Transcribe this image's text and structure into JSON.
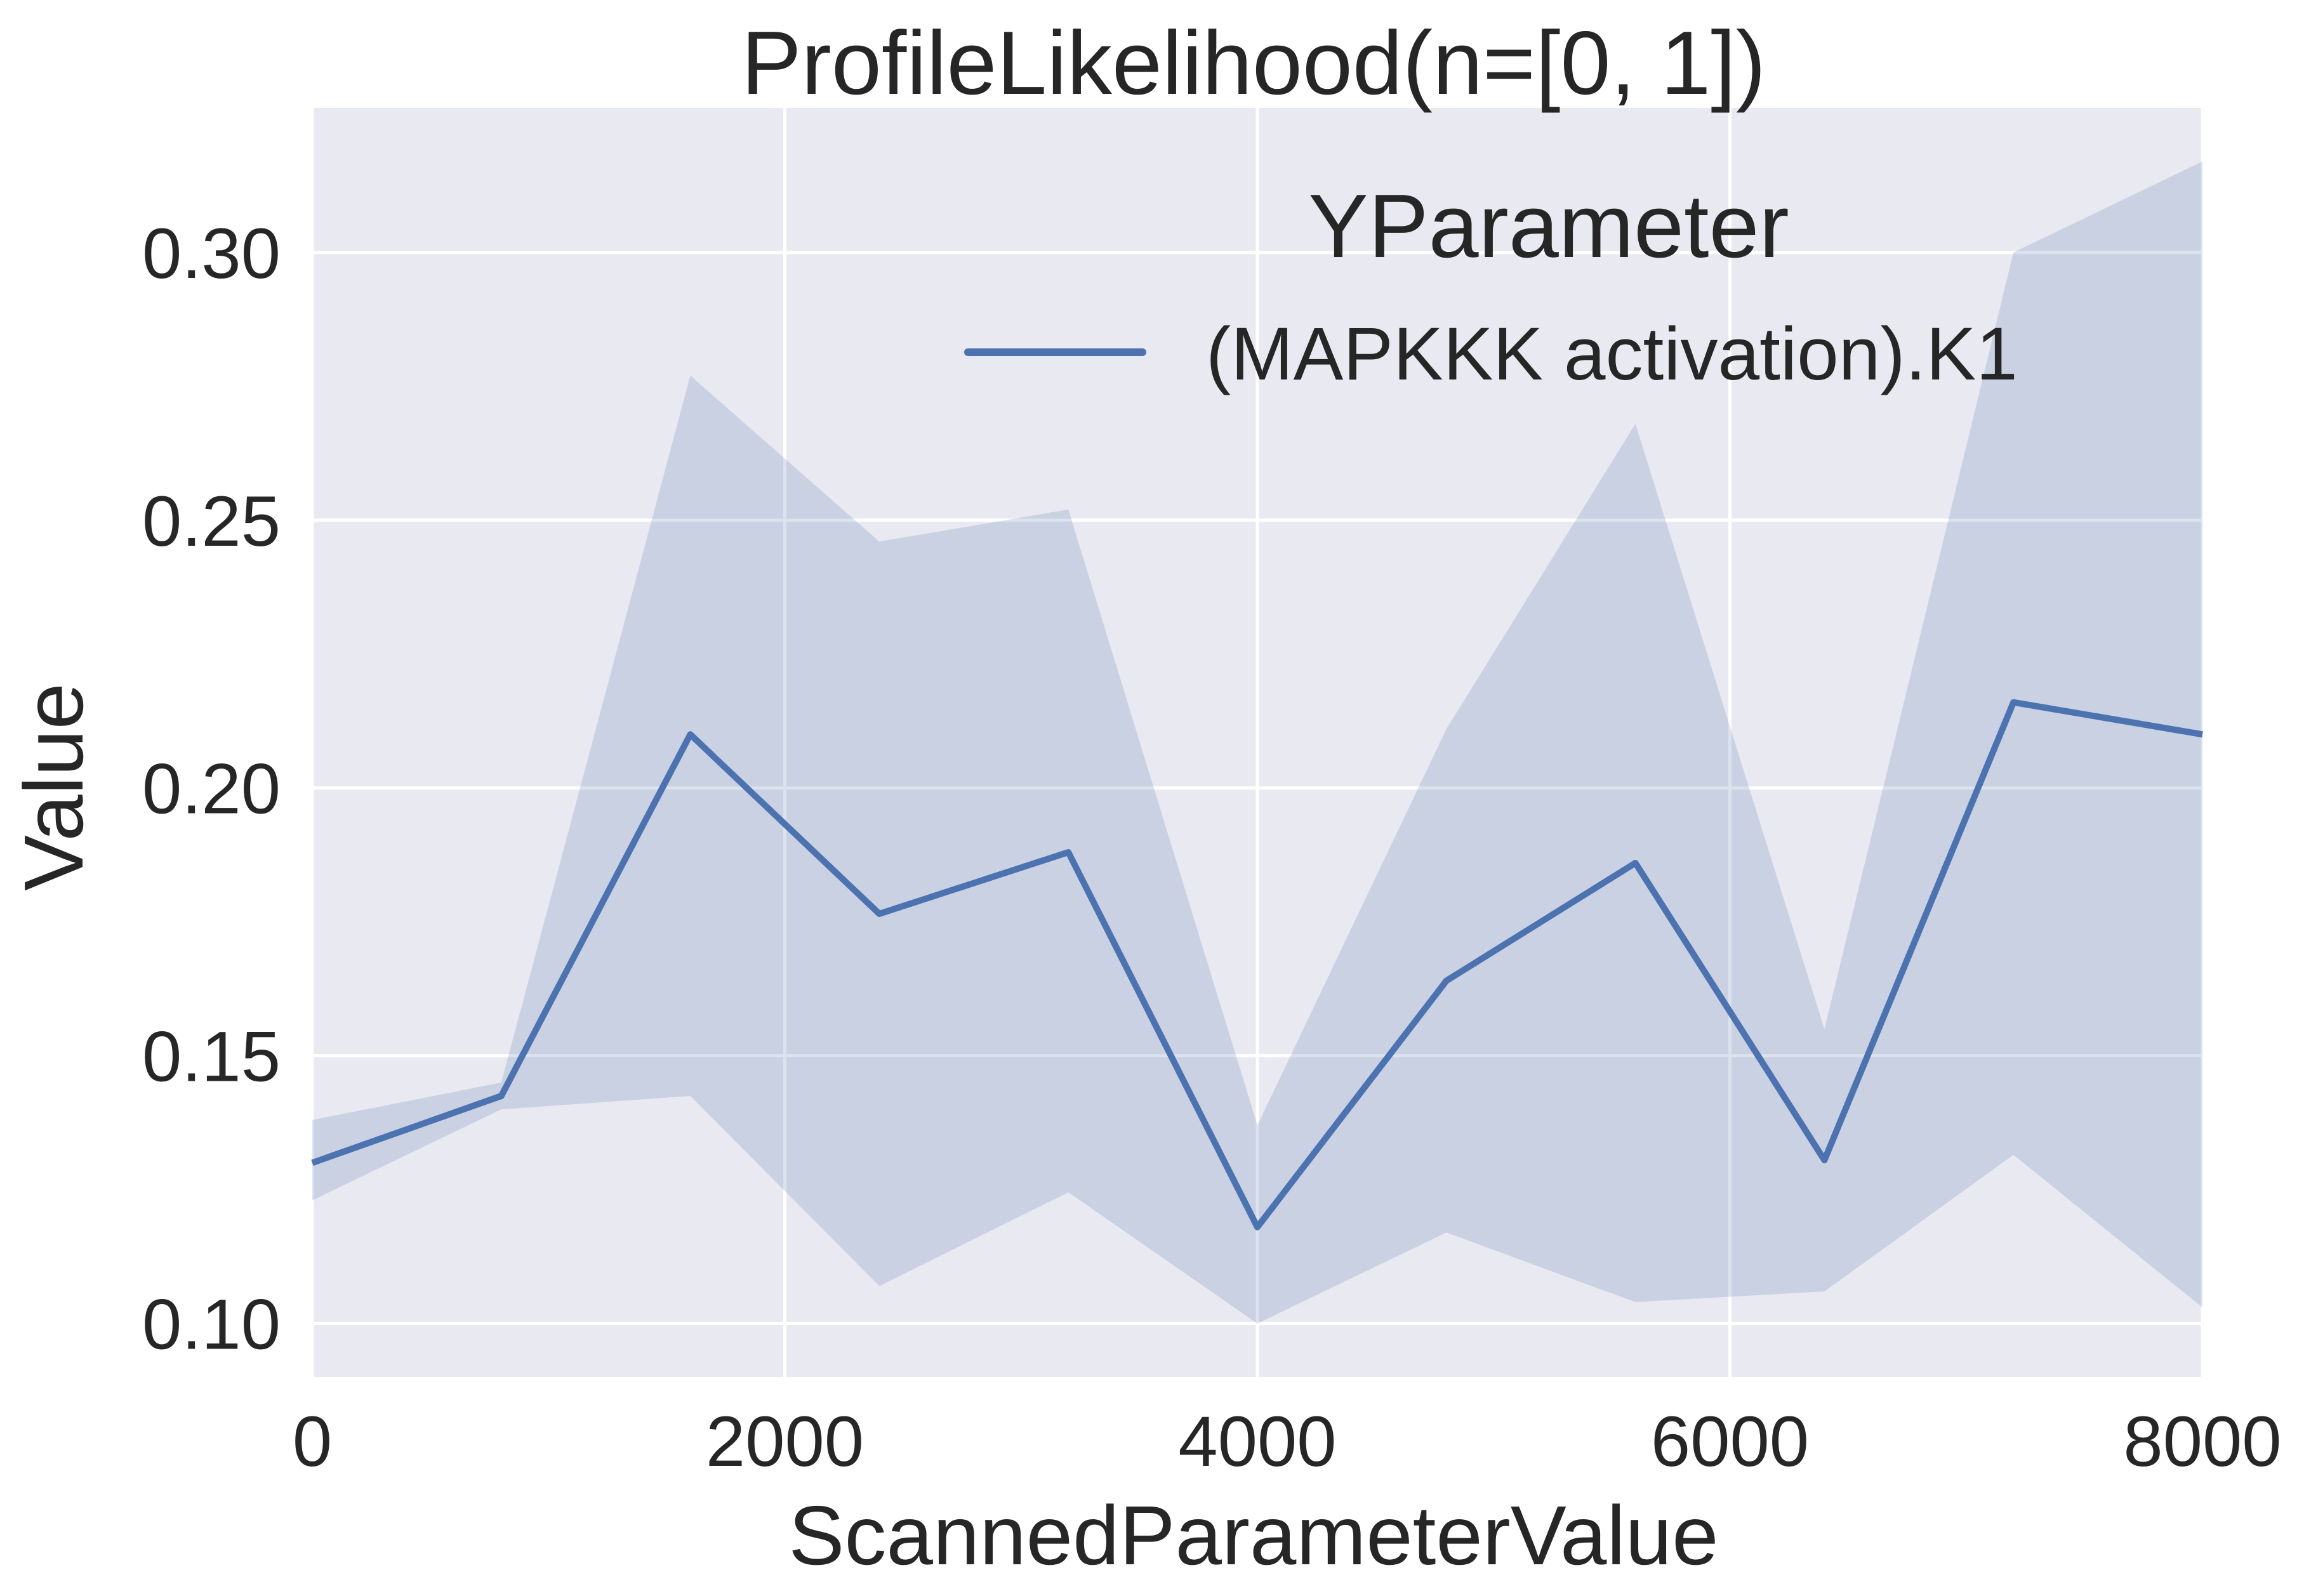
{
  "chart_data": {
    "type": "line",
    "title": "ProfileLikelihood(n=[0, 1])",
    "xlabel": "ScannedParameterValue",
    "ylabel": "Value",
    "xlim": [
      0,
      8000
    ],
    "ylim": [
      0.09,
      0.327
    ],
    "xticks": [
      0,
      2000,
      4000,
      6000,
      8000
    ],
    "xtick_labels": [
      "0",
      "2000",
      "4000",
      "6000",
      "8000"
    ],
    "yticks": [
      0.1,
      0.15,
      0.2,
      0.25,
      0.3
    ],
    "ytick_labels": [
      "0.10",
      "0.15",
      "0.20",
      "0.25",
      "0.30"
    ],
    "grid": true,
    "legend": {
      "title": "YParameter",
      "placement": "top-right"
    },
    "colors": {
      "line": "#4c72b0",
      "band": "#4c72b0",
      "background": "#e9e9f1",
      "grid": "#ffffff"
    },
    "series": [
      {
        "name": "(MAPKKK activation).K1",
        "x": [
          0,
          800,
          1600,
          2400,
          3200,
          4000,
          4800,
          5600,
          6400,
          7200,
          8000
        ],
        "y": [
          0.13,
          0.1425,
          0.21,
          0.1765,
          0.188,
          0.118,
          0.164,
          0.186,
          0.1305,
          0.216,
          0.21
        ],
        "upper": [
          0.138,
          0.145,
          0.277,
          0.246,
          0.252,
          0.137,
          0.211,
          0.268,
          0.155,
          0.3,
          0.317
        ],
        "lower": [
          0.123,
          0.14,
          0.1425,
          0.107,
          0.1245,
          0.1,
          0.117,
          0.104,
          0.106,
          0.1315,
          0.103
        ]
      }
    ]
  }
}
